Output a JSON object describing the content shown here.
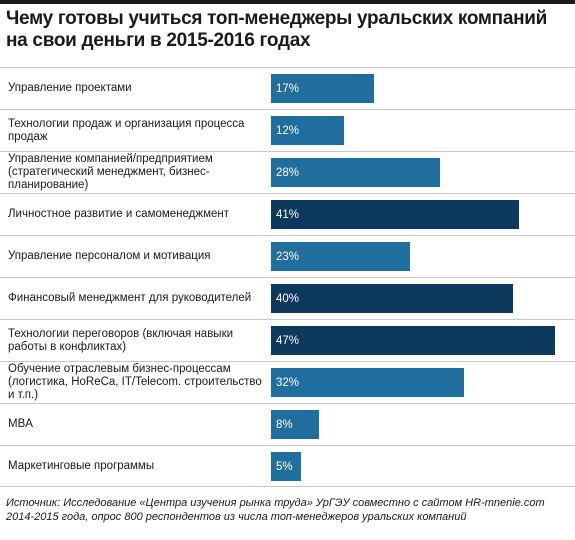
{
  "chart_data": {
    "type": "bar",
    "orientation": "horizontal",
    "title": "Чему готовы учиться топ-менеджеры уральских компаний на свои деньги в 2015-2016 годах",
    "categories": [
      "Управление проектами",
      "Технологии продаж и организация процесса продаж",
      "Управление компанией/предприятием (стратегический менеджмент, бизнес-планирование)",
      "Личностное развитие и самоменеджмент",
      "Управление персоналом и мотивация",
      "Финансовый менеджмент для руководителей",
      "Технологии переговоров (включая навыки работы в конфликтах)",
      "Обучение отраслевым бизнес-процессам (логистика, HoReCa, IT/Telecom. строительство и т.п.)",
      "MBA",
      "Маркетинговые программы"
    ],
    "values": [
      17,
      12,
      28,
      41,
      23,
      40,
      47,
      32,
      8,
      5
    ],
    "value_labels": [
      "17%",
      "12%",
      "28%",
      "41%",
      "23%",
      "40%",
      "47%",
      "32%",
      "8%",
      "5%"
    ],
    "unit": "%",
    "xlim": [
      0,
      47
    ],
    "colors": {
      "normal": "#1f6e9e",
      "highlight": "#0d3a5c"
    },
    "highlighted": [
      3,
      5,
      6
    ],
    "grid": false,
    "source": "Источник: Исследование «Центра изучения рынка труда» УрГЭУ совместно с сайтом HR-mnenie.com 2014-2015 года, опрос 800 респондентов из числа топ-менеджеров уральских компаний"
  }
}
